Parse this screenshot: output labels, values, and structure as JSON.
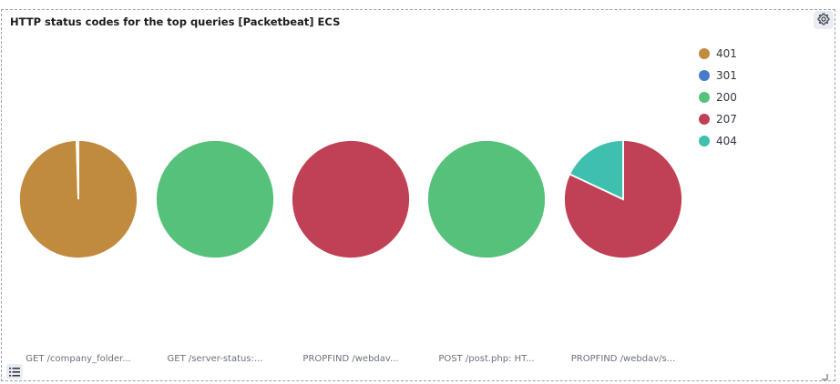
{
  "panel": {
    "title": "HTTP status codes for the top queries [Packetbeat] ECS"
  },
  "icons": {
    "settings": "gear-icon",
    "legend_toggle": "list-icon",
    "resize": "resize-corner-icon"
  },
  "chart_data": {
    "type": "pie",
    "title": "HTTP status codes for the top queries [Packetbeat] ECS",
    "legend": {
      "position": "top-right",
      "items": [
        {
          "label": "401",
          "color": "#c18b3f"
        },
        {
          "label": "301",
          "color": "#4a7bc8"
        },
        {
          "label": "200",
          "color": "#55c17a"
        },
        {
          "label": "207",
          "color": "#c04055"
        },
        {
          "label": "404",
          "color": "#3fbfae"
        }
      ]
    },
    "pies": [
      {
        "label": "GET /company_folder...",
        "slices": [
          {
            "name": "401",
            "value": 99.5,
            "color": "#c18b3f"
          },
          {
            "name": "301",
            "value": 0.5,
            "color": "#4a7bc8"
          }
        ]
      },
      {
        "label": "GET /server-status:...",
        "slices": [
          {
            "name": "200",
            "value": 100,
            "color": "#55c17a"
          }
        ]
      },
      {
        "label": "PROPFIND /webdav...",
        "slices": [
          {
            "name": "207",
            "value": 100,
            "color": "#c04055"
          }
        ]
      },
      {
        "label": "POST /post.php: HT...",
        "slices": [
          {
            "name": "200",
            "value": 100,
            "color": "#55c17a"
          }
        ]
      },
      {
        "label": "PROPFIND /webdav/s...",
        "slices": [
          {
            "name": "207",
            "value": 82,
            "color": "#c04055"
          },
          {
            "name": "404",
            "value": 18,
            "color": "#3fbfae"
          }
        ]
      }
    ]
  }
}
